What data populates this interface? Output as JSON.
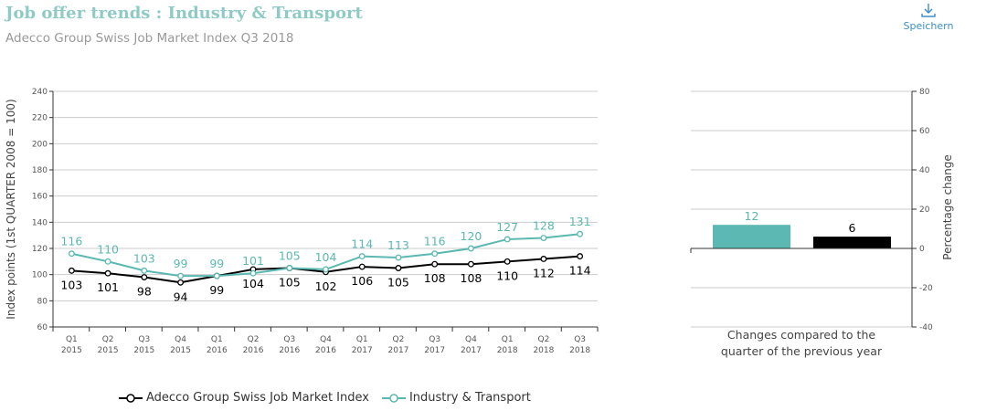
{
  "header": {
    "title": "Job offer trends : Industry & Transport",
    "subtitle": "Adecco Group Swiss Job Market Index Q3 2018",
    "save_label": "Speichern",
    "save_icon": "download-icon"
  },
  "colors": {
    "industry": "#5bb8b2",
    "index": "#000000",
    "title": "#8ecbc6",
    "link": "#3a8fc7"
  },
  "chart_data": [
    {
      "type": "line",
      "ylabel": "Index points (1st QUARTER 2008 = 100)",
      "ylim": [
        60,
        240
      ],
      "yticks": [
        60,
        80,
        100,
        120,
        140,
        160,
        180,
        200,
        220,
        240
      ],
      "grid": true,
      "categories": [
        [
          "Q1",
          "2015"
        ],
        [
          "Q2",
          "2015"
        ],
        [
          "Q3",
          "2015"
        ],
        [
          "Q4",
          "2015"
        ],
        [
          "Q1",
          "2016"
        ],
        [
          "Q2",
          "2016"
        ],
        [
          "Q3",
          "2016"
        ],
        [
          "Q4",
          "2016"
        ],
        [
          "Q1",
          "2017"
        ],
        [
          "Q2",
          "2017"
        ],
        [
          "Q3",
          "2017"
        ],
        [
          "Q4",
          "2017"
        ],
        [
          "Q1",
          "2018"
        ],
        [
          "Q2",
          "2018"
        ],
        [
          "Q3",
          "2018"
        ]
      ],
      "series": [
        {
          "name": "Adecco Group Swiss Job Market Index",
          "color": "#000000",
          "values": [
            103,
            101,
            98,
            94,
            99,
            104,
            105,
            102,
            106,
            105,
            108,
            108,
            110,
            112,
            114
          ]
        },
        {
          "name": "Industry & Transport",
          "color": "#5bb8b2",
          "values": [
            116,
            110,
            103,
            99,
            99,
            101,
            105,
            104,
            114,
            113,
            116,
            120,
            127,
            128,
            131
          ]
        }
      ],
      "legend": "bottom"
    },
    {
      "type": "bar",
      "xlabel": "Changes compared to the quarter of the previous year",
      "ylabel": "Percentage change",
      "ylim": [
        -40,
        80
      ],
      "yticks": [
        -40,
        -20,
        0,
        20,
        40,
        60,
        80
      ],
      "grid": true,
      "bars": [
        {
          "value": 12,
          "color": "#5bb8b2"
        },
        {
          "value": 6,
          "color": "#000000"
        }
      ]
    }
  ]
}
